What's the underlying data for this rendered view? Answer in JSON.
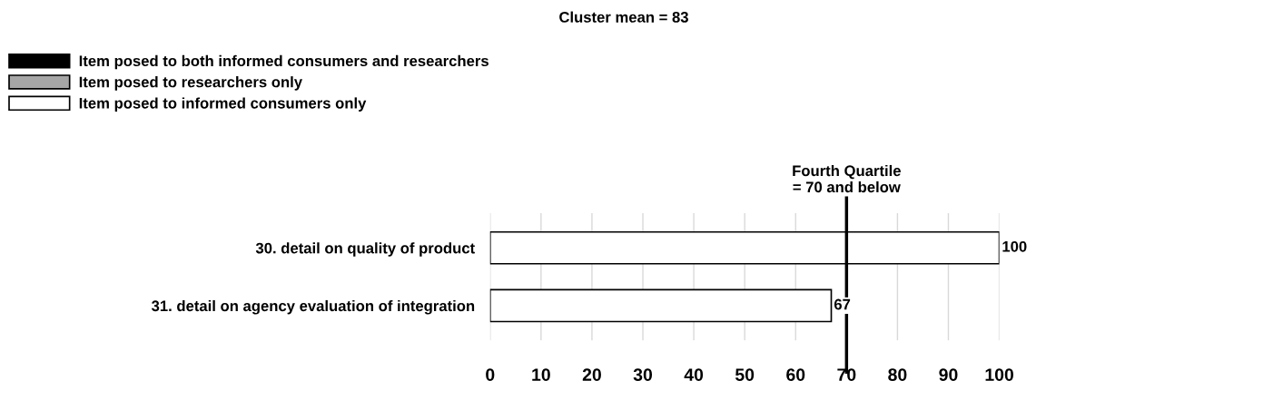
{
  "chart_data": {
    "type": "bar",
    "orientation": "horizontal",
    "title": "Cluster mean = 83",
    "categories": [
      "30. detail on quality of product",
      "31. detail on agency evaluation of integration"
    ],
    "series": [
      {
        "name": "Item posed to both informed consumers and researchers",
        "color": "#000000",
        "values": [
          null,
          null
        ]
      },
      {
        "name": "Item posed to researchers only",
        "color": "#a6a6a6",
        "values": [
          null,
          null
        ]
      },
      {
        "name": "Item posed to informed consumers only",
        "color": "#ffffff",
        "values": [
          100,
          67
        ]
      }
    ],
    "xlim": [
      0,
      100
    ],
    "xticks": [
      0,
      10,
      20,
      30,
      40,
      50,
      60,
      70,
      80,
      90,
      100
    ],
    "grid": "x",
    "legend": "top left",
    "data_labels": true,
    "ref_lines": [
      {
        "axis": "x",
        "value": 70,
        "label": "Fourth Quartile\n= 70 and below",
        "color": "#000000"
      }
    ]
  }
}
